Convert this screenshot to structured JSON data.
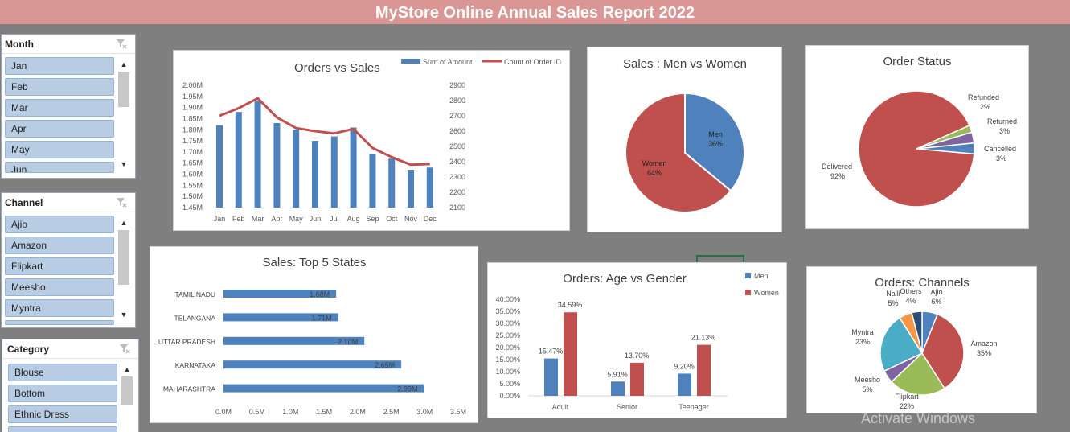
{
  "title": "MyStore Online Annual Sales Report 2022",
  "watermark": "Activate Windows",
  "slicers": {
    "month": {
      "label": "Month",
      "items": [
        "Jan",
        "Feb",
        "Mar",
        "Apr",
        "May",
        "Jun"
      ]
    },
    "channel": {
      "label": "Channel",
      "items": [
        "Ajio",
        "Amazon",
        "Flipkart",
        "Meesho",
        "Myntra",
        ""
      ]
    },
    "category": {
      "label": "Category",
      "items": [
        "Blouse",
        "Bottom",
        "Ethnic Dress",
        ""
      ]
    }
  },
  "chart_data": [
    {
      "id": "orders_vs_sales",
      "type": "bar+line",
      "title": "Orders vs Sales",
      "categories": [
        "Jan",
        "Feb",
        "Mar",
        "Apr",
        "May",
        "Jun",
        "Jul",
        "Aug",
        "Sep",
        "Oct",
        "Nov",
        "Dec"
      ],
      "series": [
        {
          "name": "Sum of Amount",
          "type": "bar",
          "axis": "left",
          "color": "#4f81bd",
          "values": [
            1.82,
            1.88,
            1.93,
            1.83,
            1.8,
            1.75,
            1.77,
            1.81,
            1.69,
            1.67,
            1.62,
            1.63
          ]
        },
        {
          "name": "Count of Order ID",
          "type": "line",
          "axis": "right",
          "color": "#c0504d",
          "values": [
            2700,
            2750,
            2815,
            2690,
            2620,
            2600,
            2585,
            2615,
            2490,
            2430,
            2380,
            2385
          ]
        }
      ],
      "y_left": {
        "min": 1.45,
        "max": 2.0,
        "ticks": [
          "1.45M",
          "1.50M",
          "1.55M",
          "1.60M",
          "1.65M",
          "1.70M",
          "1.75M",
          "1.80M",
          "1.85M",
          "1.90M",
          "1.95M",
          "2.00M"
        ]
      },
      "y_right": {
        "min": 2100,
        "max": 2900,
        "ticks": [
          "2100",
          "2200",
          "2300",
          "2400",
          "2500",
          "2600",
          "2700",
          "2800",
          "2900"
        ]
      },
      "legend": "top-right"
    },
    {
      "id": "men_vs_women",
      "type": "pie",
      "title": "Sales : Men vs Women",
      "slices": [
        {
          "name": "Men",
          "value": 36,
          "label": "36%",
          "color": "#4f81bd"
        },
        {
          "name": "Women",
          "value": 64,
          "label": "64%",
          "color": "#c0504d"
        }
      ]
    },
    {
      "id": "order_status",
      "type": "pie",
      "title": "Order Status",
      "slices": [
        {
          "name": "Delivered",
          "value": 92,
          "label": "92%",
          "color": "#c0504d"
        },
        {
          "name": "Refunded",
          "value": 2,
          "label": "2%",
          "color": "#9bbb59"
        },
        {
          "name": "Returned",
          "value": 3,
          "label": "3%",
          "color": "#8064a2"
        },
        {
          "name": "Cancelled",
          "value": 3,
          "label": "3%",
          "color": "#4f81bd"
        }
      ]
    },
    {
      "id": "top5_states",
      "type": "bar",
      "orientation": "horizontal",
      "title": "Sales: Top 5 States",
      "categories": [
        "TAMIL NADU",
        "TELANGANA",
        "UTTAR PRADESH",
        "KARNATAKA",
        "MAHARASHTRA"
      ],
      "values": [
        1.68,
        1.71,
        2.1,
        2.65,
        2.99
      ],
      "value_labels": [
        "1.68M",
        "1.71M",
        "2.10M",
        "2.65M",
        "2.99M"
      ],
      "xlim": [
        0,
        3.5
      ],
      "x_ticks": [
        "0.0M",
        "0.5M",
        "1.0M",
        "1.5M",
        "2.0M",
        "2.5M",
        "3.0M",
        "3.5M"
      ],
      "color": "#4f81bd"
    },
    {
      "id": "age_vs_gender",
      "type": "bar",
      "title": "Orders: Age vs Gender",
      "categories": [
        "Adult",
        "Senior",
        "Teenager"
      ],
      "series": [
        {
          "name": "Men",
          "color": "#4f81bd",
          "values": [
            15.47,
            5.91,
            9.2
          ],
          "labels": [
            "15.47%",
            "5.91%",
            "9.20%"
          ]
        },
        {
          "name": "Women",
          "color": "#c0504d",
          "values": [
            34.59,
            13.7,
            21.13
          ],
          "labels": [
            "34.59%",
            "13.70%",
            "21.13%"
          ]
        }
      ],
      "ylim": [
        0,
        40
      ],
      "y_ticks": [
        "0.00%",
        "5.00%",
        "10.00%",
        "15.00%",
        "20.00%",
        "25.00%",
        "30.00%",
        "35.00%",
        "40.00%"
      ],
      "legend": "right"
    },
    {
      "id": "orders_channels",
      "type": "pie",
      "title": "Orders: Channels",
      "slices": [
        {
          "name": "Ajio",
          "value": 6,
          "label": "6%",
          "color": "#4f81bd"
        },
        {
          "name": "Amazon",
          "value": 35,
          "label": "35%",
          "color": "#c0504d"
        },
        {
          "name": "Flipkart",
          "value": 22,
          "label": "22%",
          "color": "#9bbb59"
        },
        {
          "name": "Meesho",
          "value": 5,
          "label": "5%",
          "color": "#8064a2"
        },
        {
          "name": "Myntra",
          "value": 23,
          "label": "23%",
          "color": "#4bacc6"
        },
        {
          "name": "Nalli",
          "value": 5,
          "label": "5%",
          "color": "#f79646"
        },
        {
          "name": "Others",
          "value": 4,
          "label": "4%",
          "color": "#2c4d75"
        }
      ]
    }
  ]
}
